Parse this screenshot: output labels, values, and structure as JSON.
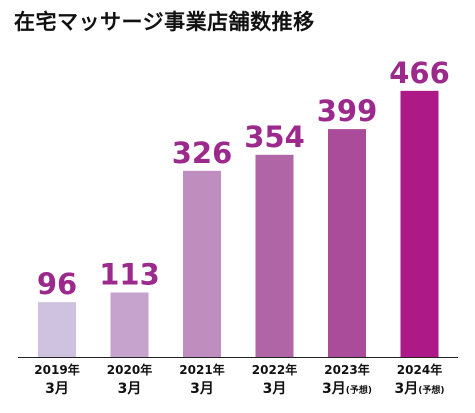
{
  "chart_data": {
    "type": "bar",
    "title": "在宅マッサージ事業店舗数推移",
    "categories": [
      {
        "line1": "2019年",
        "line2": "3月",
        "note": ""
      },
      {
        "line1": "2020年",
        "line2": "3月",
        "note": ""
      },
      {
        "line1": "2021年",
        "line2": "3月",
        "note": ""
      },
      {
        "line1": "2022年",
        "line2": "3月",
        "note": ""
      },
      {
        "line1": "2023年",
        "line2": "3月",
        "note": "(予想)"
      },
      {
        "line1": "2024年",
        "line2": "3月",
        "note": "(予想)"
      }
    ],
    "values": [
      96,
      113,
      326,
      354,
      399,
      466
    ],
    "value_labels": [
      "96",
      "113",
      "326",
      "354",
      "399",
      "466"
    ],
    "bar_colors": [
      "#cfc2e0",
      "#c6a3cc",
      "#bf8ebf",
      "#b066a6",
      "#ab4c9a",
      "#ad1a87"
    ],
    "label_color": "#9c2a8c",
    "ylim": [
      0,
      520
    ],
    "grid": false,
    "legend": "none",
    "xlabel": "",
    "ylabel": ""
  }
}
